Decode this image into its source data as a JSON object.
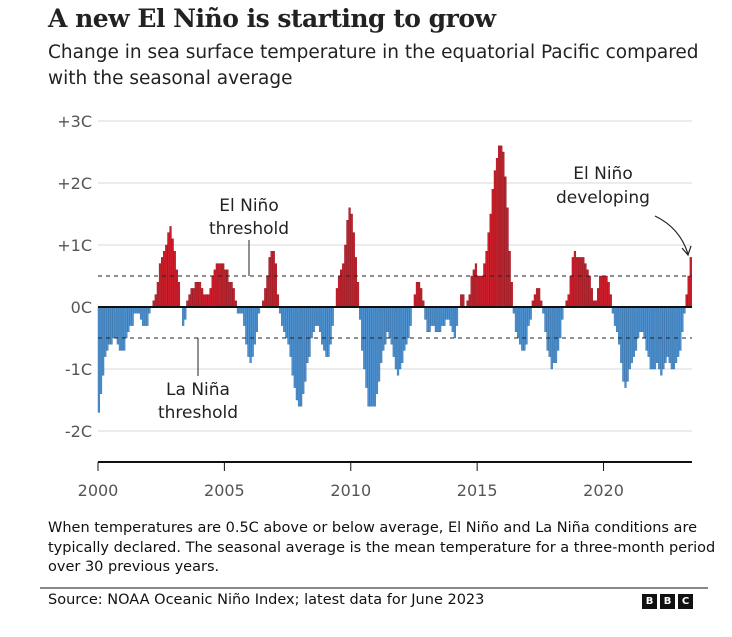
{
  "header": {
    "title": "A new El Niño is starting to grow",
    "subtitle": "Change in sea surface temperature in the equatorial Pacific compared with the seasonal average"
  },
  "footer": {
    "note": "When temperatures are 0.5C above or below average, El Niño and La Niña conditions are typically declared. The seasonal average is the mean temperature for a three-month period over 30 previous years.",
    "source": "Source: NOAA Oceanic Niño Index; latest data for June 2023",
    "logo": [
      "B",
      "B",
      "C"
    ]
  },
  "colors": {
    "warm": "#cc1f2b",
    "warm_edge": "#8e0f18",
    "cool": "#4f92cf",
    "cool_edge": "#2c6aa5",
    "grid": "#d8d8d8",
    "axis": "#111111"
  },
  "chart_data": {
    "type": "bar",
    "title": "A new El Niño is starting to grow",
    "xlabel": "",
    "ylabel": "",
    "ylim": [
      -2.5,
      3.0
    ],
    "y_ticks": [
      3,
      2,
      1,
      0,
      -1,
      -2
    ],
    "y_tick_labels": [
      "+3C",
      "+2C",
      "+1C",
      "0C",
      "-1C",
      "-2C"
    ],
    "x_ticks": [
      2000,
      2005,
      2010,
      2015,
      2020
    ],
    "x_tick_labels": [
      "2000",
      "2005",
      "2010",
      "2015",
      "2020"
    ],
    "x_range": [
      2000,
      2023.5
    ],
    "grid": true,
    "thresholds": [
      {
        "name": "El Niño threshold",
        "value": 0.5
      },
      {
        "name": "La Niña threshold",
        "value": -0.5
      }
    ],
    "annotations": [
      {
        "text": [
          "El Niño",
          "threshold"
        ],
        "target": "El Niño threshold"
      },
      {
        "text": [
          "La Niña",
          "threshold"
        ],
        "target": "La Niña threshold"
      },
      {
        "text": [
          "El Niño",
          "developing"
        ],
        "target": "latest value"
      }
    ],
    "start": "2000-01",
    "frequency": "monthly",
    "values": [
      -1.7,
      -1.4,
      -1.1,
      -0.8,
      -0.7,
      -0.6,
      -0.6,
      -0.5,
      -0.5,
      -0.6,
      -0.7,
      -0.7,
      -0.7,
      -0.5,
      -0.4,
      -0.3,
      -0.3,
      -0.1,
      -0.1,
      -0.1,
      -0.2,
      -0.3,
      -0.3,
      -0.3,
      -0.1,
      0.0,
      0.1,
      0.2,
      0.4,
      0.7,
      0.8,
      0.9,
      1.0,
      1.2,
      1.3,
      1.1,
      0.9,
      0.6,
      0.4,
      0.0,
      -0.3,
      -0.2,
      0.1,
      0.2,
      0.3,
      0.3,
      0.4,
      0.4,
      0.4,
      0.3,
      0.2,
      0.2,
      0.2,
      0.3,
      0.5,
      0.6,
      0.7,
      0.7,
      0.7,
      0.7,
      0.6,
      0.6,
      0.4,
      0.4,
      0.3,
      0.1,
      -0.1,
      -0.1,
      -0.1,
      -0.3,
      -0.6,
      -0.8,
      -0.9,
      -0.8,
      -0.6,
      -0.4,
      -0.1,
      0.0,
      0.1,
      0.3,
      0.5,
      0.8,
      0.9,
      0.9,
      0.7,
      0.2,
      -0.1,
      -0.3,
      -0.4,
      -0.5,
      -0.6,
      -0.8,
      -1.1,
      -1.3,
      -1.5,
      -1.6,
      -1.6,
      -1.4,
      -1.2,
      -0.9,
      -0.8,
      -0.5,
      -0.4,
      -0.3,
      -0.3,
      -0.4,
      -0.6,
      -0.7,
      -0.8,
      -0.8,
      -0.6,
      -0.3,
      0.0,
      0.3,
      0.5,
      0.6,
      0.7,
      1.0,
      1.4,
      1.6,
      1.5,
      1.2,
      0.8,
      0.4,
      -0.2,
      -0.7,
      -1.0,
      -1.3,
      -1.6,
      -1.6,
      -1.6,
      -1.6,
      -1.4,
      -1.2,
      -0.9,
      -0.7,
      -0.6,
      -0.4,
      -0.5,
      -0.6,
      -0.8,
      -1.0,
      -1.1,
      -1.0,
      -0.9,
      -0.7,
      -0.6,
      -0.5,
      -0.3,
      0.0,
      0.2,
      0.4,
      0.4,
      0.3,
      0.1,
      -0.2,
      -0.4,
      -0.4,
      -0.3,
      -0.3,
      -0.4,
      -0.4,
      -0.4,
      -0.3,
      -0.3,
      -0.2,
      -0.2,
      -0.3,
      -0.4,
      -0.5,
      -0.3,
      0.0,
      0.2,
      0.2,
      0.0,
      0.1,
      0.2,
      0.5,
      0.6,
      0.7,
      0.5,
      0.5,
      0.5,
      0.7,
      0.9,
      1.2,
      1.5,
      1.9,
      2.2,
      2.4,
      2.6,
      2.6,
      2.5,
      2.1,
      1.6,
      0.9,
      0.4,
      -0.1,
      -0.4,
      -0.5,
      -0.6,
      -0.7,
      -0.7,
      -0.6,
      -0.3,
      -0.2,
      0.1,
      0.2,
      0.3,
      0.3,
      0.1,
      -0.1,
      -0.4,
      -0.7,
      -0.8,
      -1.0,
      -0.9,
      -0.9,
      -0.7,
      -0.5,
      -0.2,
      0.0,
      0.1,
      0.2,
      0.5,
      0.8,
      0.9,
      0.8,
      0.8,
      0.8,
      0.8,
      0.7,
      0.6,
      0.5,
      0.3,
      0.1,
      0.1,
      0.3,
      0.5,
      0.5,
      0.5,
      0.5,
      0.4,
      0.2,
      -0.1,
      -0.3,
      -0.4,
      -0.6,
      -0.9,
      -1.2,
      -1.3,
      -1.2,
      -1.0,
      -0.9,
      -0.8,
      -0.7,
      -0.5,
      -0.4,
      -0.4,
      -0.5,
      -0.7,
      -0.8,
      -1.0,
      -1.0,
      -1.0,
      -0.9,
      -1.0,
      -1.1,
      -1.0,
      -0.9,
      -0.8,
      -0.9,
      -1.0,
      -1.0,
      -0.9,
      -0.8,
      -0.7,
      -0.4,
      -0.1,
      0.2,
      0.5,
      0.8
    ]
  }
}
